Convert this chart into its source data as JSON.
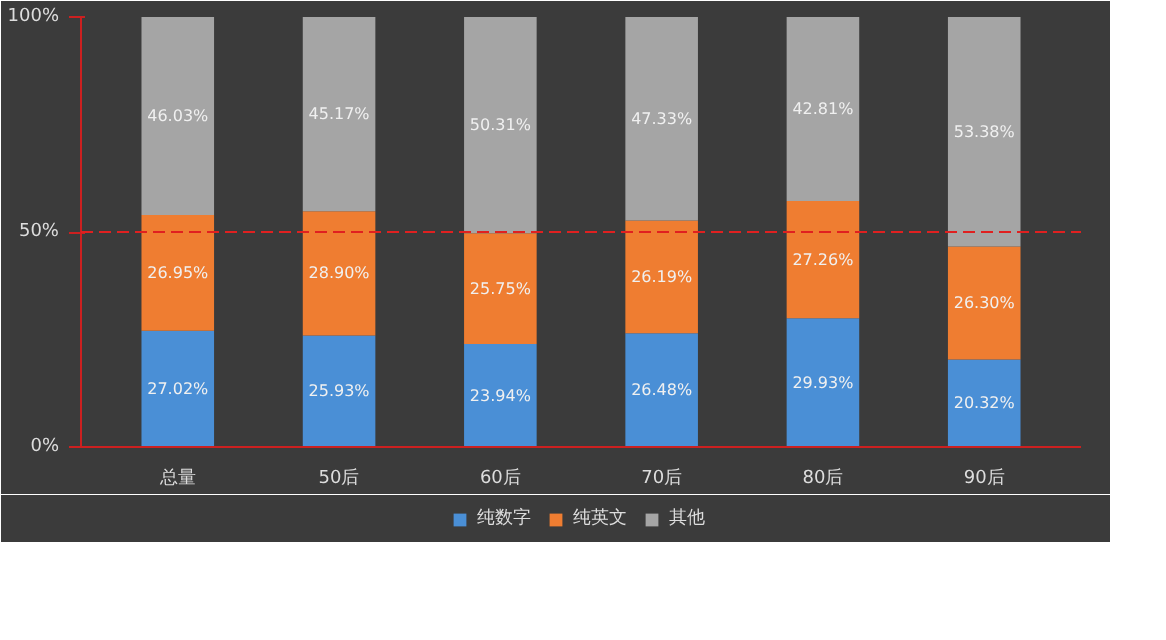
{
  "chart_data": {
    "type": "bar",
    "stacked": true,
    "categories": [
      "总量",
      "50后",
      "60后",
      "70后",
      "80后",
      "90后"
    ],
    "series": [
      {
        "name": "纯数字",
        "color": "#4a8fd6",
        "values": [
          27.02,
          25.93,
          23.94,
          26.48,
          29.93,
          20.32
        ],
        "value_labels": [
          "27.02%",
          "25.93%",
          "23.94%",
          "26.48%",
          "29.93%",
          "20.32%"
        ]
      },
      {
        "name": "纯英文",
        "color": "#ef7d31",
        "values": [
          26.95,
          28.9,
          25.75,
          26.19,
          27.26,
          26.3
        ],
        "value_labels": [
          "26.95%",
          "28.90%",
          "25.75%",
          "26.19%",
          "27.26%",
          "26.30%"
        ]
      },
      {
        "name": "其他",
        "color": "#a5a5a5",
        "values": [
          46.03,
          45.17,
          50.31,
          47.33,
          42.81,
          53.38
        ],
        "value_labels": [
          "46.03%",
          "45.17%",
          "50.31%",
          "47.33%",
          "42.81%",
          "53.38%"
        ]
      }
    ],
    "ylim": [
      0,
      100
    ],
    "yticks": [
      {
        "value": 0,
        "label": "0%"
      },
      {
        "value": 50,
        "label": "50%"
      },
      {
        "value": 100,
        "label": "100%"
      }
    ],
    "ref_lines": [
      {
        "axis": "y",
        "value": 50,
        "color": "#e02020",
        "line_style": "dashed"
      }
    ],
    "grid": false,
    "legend": "bottom"
  }
}
